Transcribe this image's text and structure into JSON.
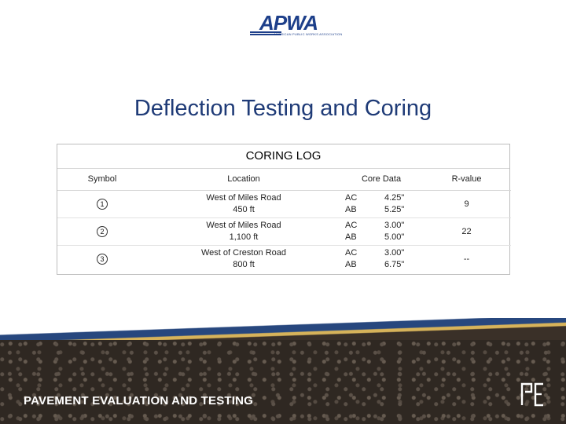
{
  "logo": {
    "text": "APWA",
    "tagline": "AMERICAN PUBLIC WORKS ASSOCIATION"
  },
  "title": "Deflection Testing and Coring",
  "coring_log": {
    "heading": "CORING LOG",
    "columns": {
      "symbol": "Symbol",
      "location": "Location",
      "core_data": "Core Data",
      "r_value": "R-value"
    },
    "rows": [
      {
        "symbol": "1",
        "location_line1": "West of Miles Road",
        "location_line2": "450 ft",
        "materials": [
          "AC",
          "AB"
        ],
        "thickness": [
          "4.25\"",
          "5.25\""
        ],
        "r_value": "9"
      },
      {
        "symbol": "2",
        "location_line1": "West of Miles Road",
        "location_line2": "1,100 ft",
        "materials": [
          "AC",
          "AB"
        ],
        "thickness": [
          "3.00\"",
          "5.00\""
        ],
        "r_value": "22"
      },
      {
        "symbol": "3",
        "location_line1": "West of Creston Road",
        "location_line2": "800 ft",
        "materials": [
          "AC",
          "AB"
        ],
        "thickness": [
          "3.00\"",
          "6.75\""
        ],
        "r_value": "--"
      }
    ]
  },
  "footer": {
    "label": "PAVEMENT EVALUATION AND TESTING"
  },
  "colors": {
    "title": "#1f3b77",
    "logo_blue": "#1d3f8a",
    "stripe_blue": "#27477e",
    "stripe_gold": "#d7b35a"
  },
  "icons": {
    "logo": "apwa-logo",
    "brand_mark": "pe-logo-icon"
  }
}
